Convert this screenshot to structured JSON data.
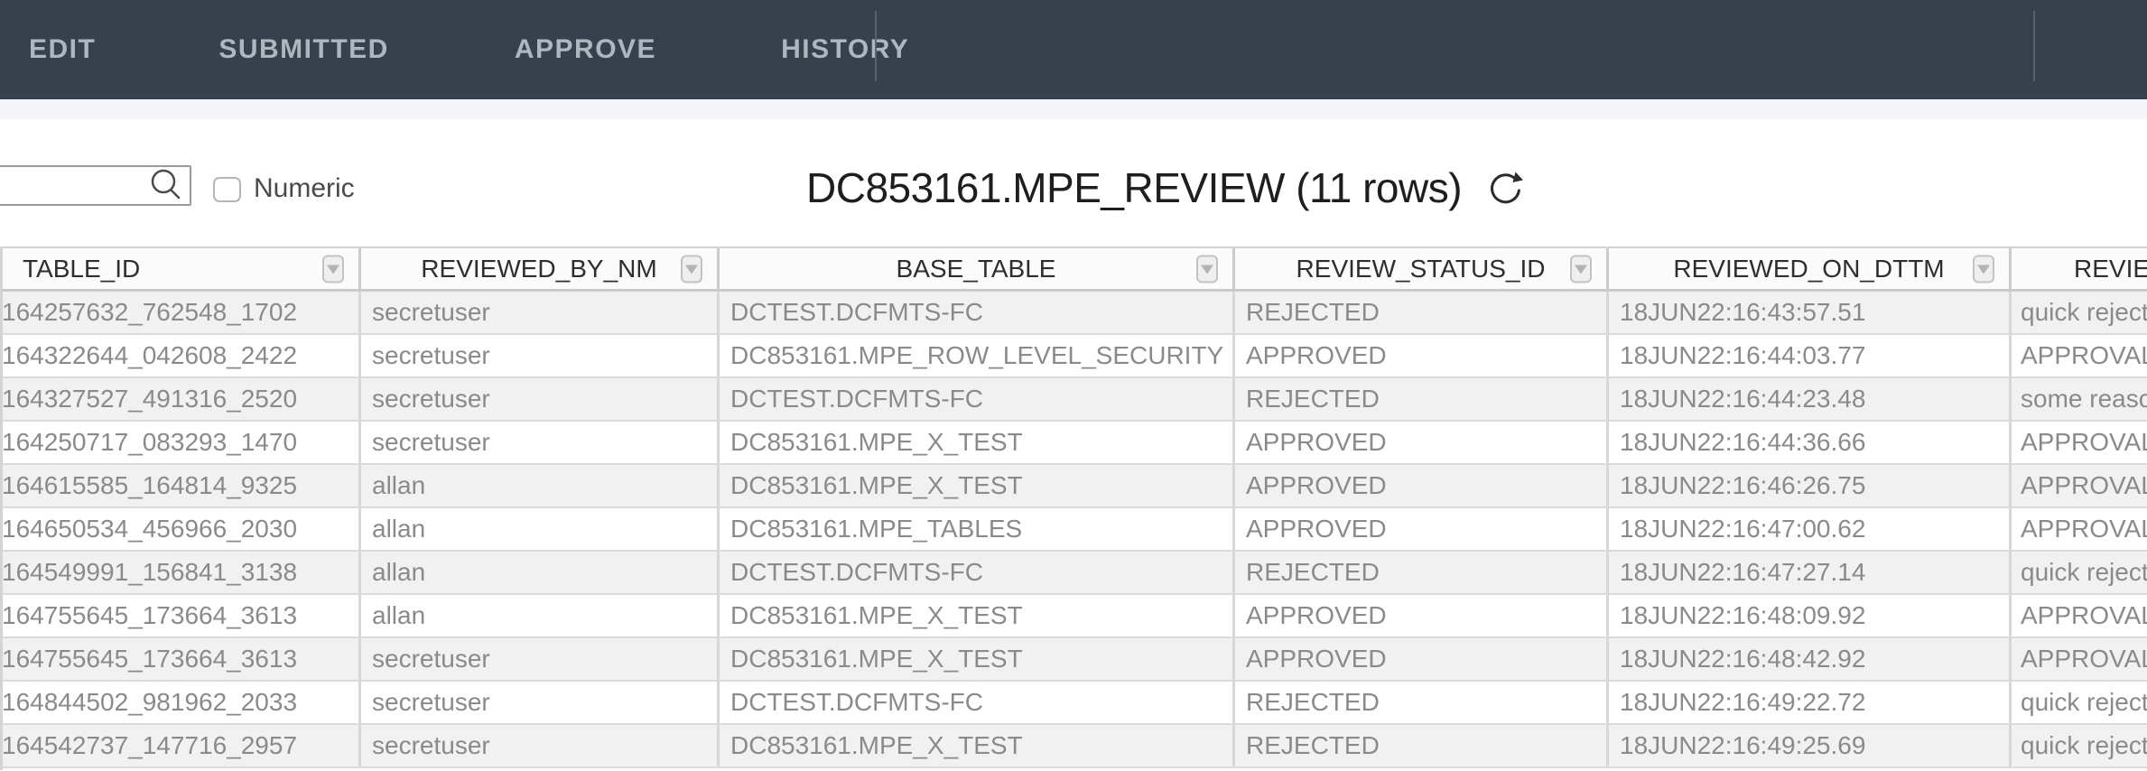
{
  "nav": {
    "tabs": [
      {
        "label": "EDIT"
      },
      {
        "label": "SUBMITTED"
      },
      {
        "label": "APPROVE"
      },
      {
        "label": "HISTORY"
      }
    ]
  },
  "toolbar": {
    "search_value": "",
    "search_placeholder": "",
    "numeric_label": "Numeric",
    "title": "DC853161.MPE_REVIEW (11 rows)"
  },
  "table": {
    "columns": [
      {
        "label": "TABLE_ID"
      },
      {
        "label": "REVIEWED_BY_NM"
      },
      {
        "label": "BASE_TABLE"
      },
      {
        "label": "REVIEW_STATUS_ID"
      },
      {
        "label": "REVIEWED_ON_DTTM"
      },
      {
        "label": "REVIEW"
      }
    ],
    "rows": [
      [
        "164257632_762548_1702",
        "secretuser",
        "DCTEST.DCFMTS-FC",
        "REJECTED",
        "18JUN22:16:43:57.51",
        "quick reject"
      ],
      [
        "164322644_042608_2422",
        "secretuser",
        "DC853161.MPE_ROW_LEVEL_SECURITY",
        "APPROVED",
        "18JUN22:16:44:03.77",
        "APPROVAL"
      ],
      [
        "164327527_491316_2520",
        "secretuser",
        "DCTEST.DCFMTS-FC",
        "REJECTED",
        "18JUN22:16:44:23.48",
        "some reason"
      ],
      [
        "164250717_083293_1470",
        "secretuser",
        "DC853161.MPE_X_TEST",
        "APPROVED",
        "18JUN22:16:44:36.66",
        "APPROVAL"
      ],
      [
        "164615585_164814_9325",
        "allan",
        "DC853161.MPE_X_TEST",
        "APPROVED",
        "18JUN22:16:46:26.75",
        "APPROVAL"
      ],
      [
        "164650534_456966_2030",
        "allan",
        "DC853161.MPE_TABLES",
        "APPROVED",
        "18JUN22:16:47:00.62",
        "APPROVAL"
      ],
      [
        "164549991_156841_3138",
        "allan",
        "DCTEST.DCFMTS-FC",
        "REJECTED",
        "18JUN22:16:47:27.14",
        "quick reject"
      ],
      [
        "164755645_173664_3613",
        "allan",
        "DC853161.MPE_X_TEST",
        "APPROVED",
        "18JUN22:16:48:09.92",
        "APPROVAL"
      ],
      [
        "164755645_173664_3613",
        "secretuser",
        "DC853161.MPE_X_TEST",
        "APPROVED",
        "18JUN22:16:48:42.92",
        "APPROVAL"
      ],
      [
        "164844502_981962_2033",
        "secretuser",
        "DCTEST.DCFMTS-FC",
        "REJECTED",
        "18JUN22:16:49:22.72",
        "quick reject"
      ],
      [
        "164542737_147716_2957",
        "secretuser",
        "DC853161.MPE_X_TEST",
        "REJECTED",
        "18JUN22:16:49:25.69",
        "quick reject"
      ]
    ]
  },
  "colors": {
    "navbar_bg": "#36414d",
    "nav_tab_text": "#aeb6be",
    "band_bg": "#f4f4f9",
    "header_bg": "#fbfbfb",
    "header_text": "#2e2e2e",
    "row_stripe": "#f1f1f2",
    "cell_text": "#8a8a8a",
    "grid_border": "#d8d8d8"
  }
}
